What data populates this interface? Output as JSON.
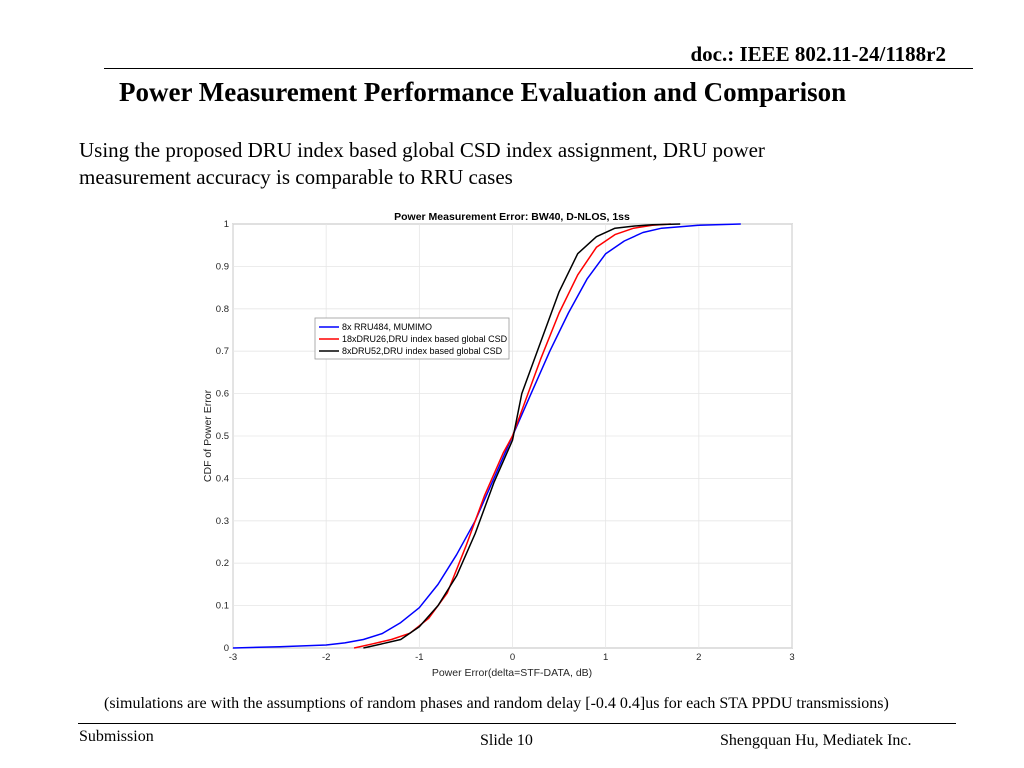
{
  "header": {
    "doc_id": "doc.: IEEE 802.11-24/1188r2",
    "title": "Power Measurement Performance Evaluation and Comparison"
  },
  "body": {
    "text": "Using the proposed DRU index based global CSD index assignment, DRU power measurement accuracy is comparable to RRU cases"
  },
  "note": "(simulations are with the assumptions of  random phases and random delay [-0.4 0.4]us for each STA PPDU transmissions)",
  "footer": {
    "left": "Submission",
    "center": "Slide 10",
    "right": "Shengquan Hu, Mediatek Inc."
  },
  "chart_data": {
    "type": "line",
    "title": "Power Measurement Error: BW40, D-NLOS, 1ss",
    "xlabel": "Power Error(delta=STF-DATA, dB)",
    "ylabel": "CDF of Power Error",
    "xlim": [
      -3,
      3
    ],
    "ylim": [
      0,
      1
    ],
    "xticks": [
      -3,
      -2,
      -1,
      0,
      1,
      2,
      3
    ],
    "yticks": [
      0,
      0.1,
      0.2,
      0.3,
      0.4,
      0.5,
      0.6,
      0.7,
      0.8,
      0.9,
      1
    ],
    "grid": true,
    "legend_position": "upper-left",
    "series": [
      {
        "name": "8x RRU484, MUMIMO",
        "color": "#0000ff",
        "x": [
          -3.0,
          -2.5,
          -2.0,
          -1.8,
          -1.6,
          -1.4,
          -1.2,
          -1.0,
          -0.8,
          -0.6,
          -0.4,
          -0.2,
          0.0,
          0.2,
          0.4,
          0.6,
          0.8,
          1.0,
          1.2,
          1.4,
          1.6,
          2.0,
          2.45
        ],
        "y": [
          0.0,
          0.003,
          0.007,
          0.012,
          0.02,
          0.034,
          0.06,
          0.095,
          0.15,
          0.22,
          0.3,
          0.4,
          0.5,
          0.6,
          0.7,
          0.79,
          0.87,
          0.93,
          0.96,
          0.98,
          0.99,
          0.997,
          1.0
        ]
      },
      {
        "name": "18xDRU26,DRU index based global CSD",
        "color": "#ff0000",
        "x": [
          -1.7,
          -1.5,
          -1.3,
          -1.1,
          -0.9,
          -0.7,
          -0.5,
          -0.3,
          -0.1,
          0.0,
          0.1,
          0.3,
          0.5,
          0.7,
          0.9,
          1.1,
          1.3,
          1.5,
          1.7
        ],
        "y": [
          0.0,
          0.01,
          0.02,
          0.035,
          0.07,
          0.13,
          0.24,
          0.36,
          0.46,
          0.5,
          0.56,
          0.68,
          0.79,
          0.88,
          0.945,
          0.975,
          0.99,
          0.997,
          1.0
        ]
      },
      {
        "name": "8xDRU52,DRU index based global CSD",
        "color": "#000000",
        "x": [
          -1.6,
          -1.4,
          -1.2,
          -1.0,
          -0.8,
          -0.6,
          -0.4,
          -0.2,
          -0.1,
          0.0,
          0.1,
          0.3,
          0.5,
          0.7,
          0.9,
          1.1,
          1.3,
          1.5,
          1.8
        ],
        "y": [
          0.0,
          0.01,
          0.02,
          0.05,
          0.1,
          0.17,
          0.27,
          0.39,
          0.44,
          0.49,
          0.6,
          0.72,
          0.84,
          0.93,
          0.97,
          0.99,
          0.995,
          0.998,
          1.0
        ]
      }
    ]
  }
}
